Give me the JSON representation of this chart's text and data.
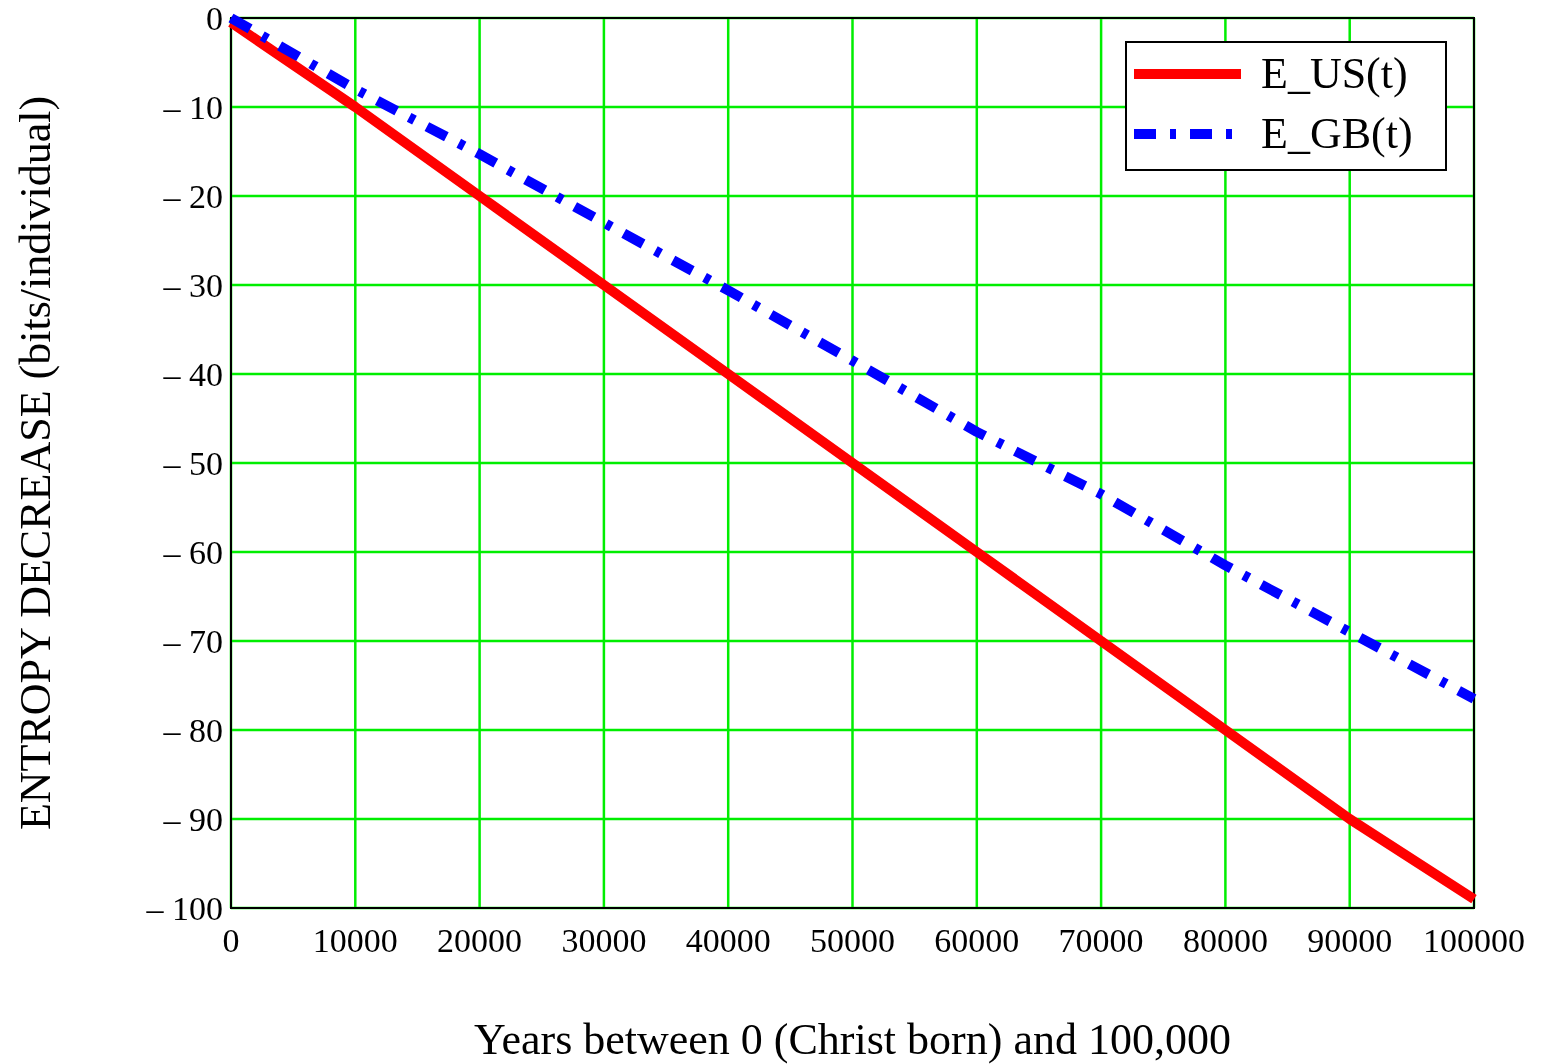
{
  "chart_data": {
    "type": "line",
    "xlabel": "Years between 0 (Christ born) and 100,000",
    "ylabel": "ENTROPY DECREASE (bits/individual)",
    "x": [
      0,
      10000,
      20000,
      30000,
      40000,
      50000,
      60000,
      70000,
      80000,
      90000,
      100000
    ],
    "series": [
      {
        "name": "E_US(t)",
        "color": "#ff0000",
        "line_style": "solid",
        "values": [
          -0.5,
          -10,
          -20,
          -30,
          -40,
          -50,
          -60,
          -70,
          -80,
          -90,
          -99
        ]
      },
      {
        "name": "E_GB(t)",
        "color": "#0000ff",
        "line_style": "dashed",
        "values": [
          0,
          -8,
          -15.3,
          -23,
          -30.6,
          -38.5,
          -46.5,
          -53.5,
          -61.5,
          -69,
          -76.5
        ]
      }
    ],
    "xlim": [
      0,
      100000
    ],
    "xticks": [
      0,
      10000,
      20000,
      30000,
      40000,
      50000,
      60000,
      70000,
      80000,
      90000,
      100000
    ],
    "ylim": [
      -100,
      0
    ],
    "yticks": [
      {
        "value": -100,
        "label": "– 100"
      },
      {
        "value": -90,
        "label": "– 90"
      },
      {
        "value": -80,
        "label": "– 80"
      },
      {
        "value": -70,
        "label": "– 70"
      },
      {
        "value": -60,
        "label": "– 60"
      },
      {
        "value": -50,
        "label": "– 50"
      },
      {
        "value": -40,
        "label": "– 40"
      },
      {
        "value": -30,
        "label": "– 30"
      },
      {
        "value": -20,
        "label": "– 20"
      },
      {
        "value": -10,
        "label": "– 10"
      },
      0
    ],
    "grid": true,
    "legend": "top right"
  }
}
